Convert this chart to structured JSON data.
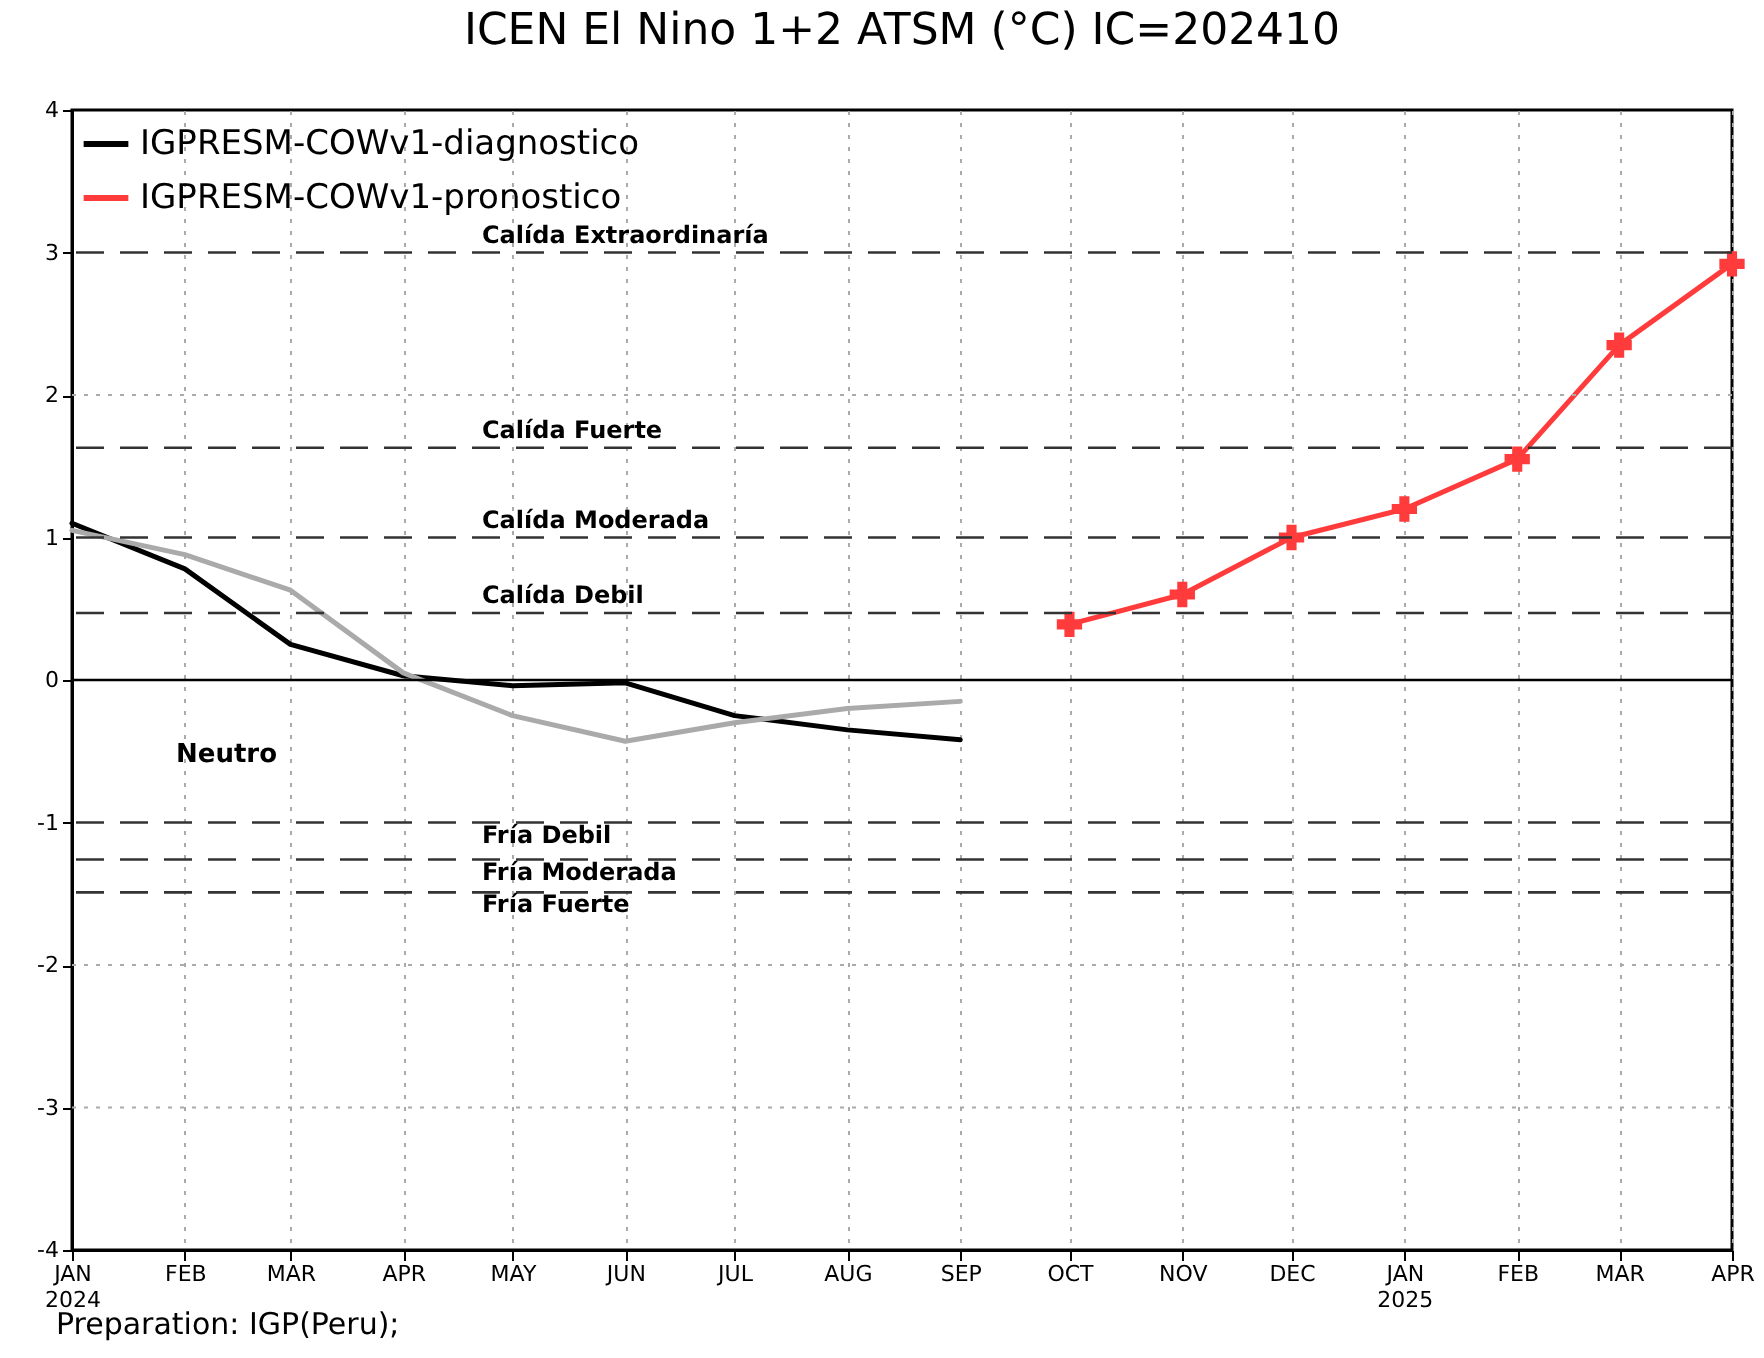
{
  "chart_data": {
    "type": "line",
    "title": "ICEN El Nino 1+2 ATSM (°C) IC=202410",
    "x": [
      "2024-01",
      "2024-02",
      "2024-03",
      "2024-04",
      "2024-05",
      "2024-06",
      "2024-07",
      "2024-08",
      "2024-09"
    ],
    "series": [
      {
        "name": "IGPRESM-COWv1-diagnostico",
        "color": "#000000",
        "values": [
          1.1,
          0.78,
          0.25,
          0.03,
          -0.04,
          -0.02,
          -0.25,
          -0.35,
          -0.42
        ]
      },
      {
        "color": "#aaaaaa",
        "values": [
          1.05,
          0.88,
          0.63,
          0.05,
          -0.25,
          -0.43,
          -0.3,
          -0.2,
          -0.15
        ]
      },
      {
        "name": "IGPRESM-COWv1-pronostico",
        "color": "#ff3b3b",
        "marker": "cross",
        "x": [
          "2024-10",
          "2024-11",
          "2024-12",
          "2025-01",
          "2025-02",
          "2025-03",
          "2025-04"
        ],
        "values": [
          0.39,
          0.6,
          1.0,
          1.2,
          1.55,
          2.35,
          2.92
        ]
      }
    ],
    "xlim": [
      "2024-01",
      "2025-04"
    ],
    "xticks": [
      {
        "value": "2024-01",
        "label": "JAN\n2024"
      },
      {
        "value": "2024-02",
        "label": "FEB"
      },
      {
        "value": "2024-03",
        "label": "MAR"
      },
      {
        "value": "2024-04",
        "label": "APR"
      },
      {
        "value": "2024-05",
        "label": "MAY"
      },
      {
        "value": "2024-06",
        "label": "JUN"
      },
      {
        "value": "2024-07",
        "label": "JUL"
      },
      {
        "value": "2024-08",
        "label": "AUG"
      },
      {
        "value": "2024-09",
        "label": "SEP"
      },
      {
        "value": "2024-10",
        "label": "OCT"
      },
      {
        "value": "2024-11",
        "label": "NOV"
      },
      {
        "value": "2024-12",
        "label": "DEC"
      },
      {
        "value": "2025-01",
        "label": "JAN\n2025"
      },
      {
        "value": "2025-02",
        "label": "FEB"
      },
      {
        "value": "2025-03",
        "label": "MAR"
      },
      {
        "value": "2025-04",
        "label": "APR"
      }
    ],
    "ylim": [
      -4,
      4
    ],
    "yticks": [
      -4,
      -3,
      -2,
      -1,
      0,
      1,
      2,
      3,
      4
    ],
    "grid": true,
    "legend": "top left",
    "ref_lines": [
      {
        "axis": "y",
        "value": 3,
        "label": "Calída Extraordinaría",
        "line_style": "dashed"
      },
      {
        "axis": "y",
        "value": 1.63,
        "label": "Calída Fuerte",
        "line_style": "dashed"
      },
      {
        "axis": "y",
        "value": 1,
        "label": "Calída Moderada",
        "line_style": "dashed"
      },
      {
        "axis": "y",
        "value": 0.47,
        "label": "Calída Debil",
        "line_style": "dashed"
      },
      {
        "axis": "y",
        "value": 0,
        "line_style": "solid"
      },
      {
        "axis": "y",
        "value": -1,
        "label": "Fría Debil",
        "line_style": "dashed"
      },
      {
        "axis": "y",
        "value": -1.26,
        "label": "Fría Moderada",
        "line_style": "dashed"
      },
      {
        "axis": "y",
        "value": -1.49,
        "label": "Fría Fuerte",
        "line_style": "dashed"
      }
    ],
    "annotations": [
      "Neutro",
      "Preparation: IGP(Peru);"
    ]
  }
}
